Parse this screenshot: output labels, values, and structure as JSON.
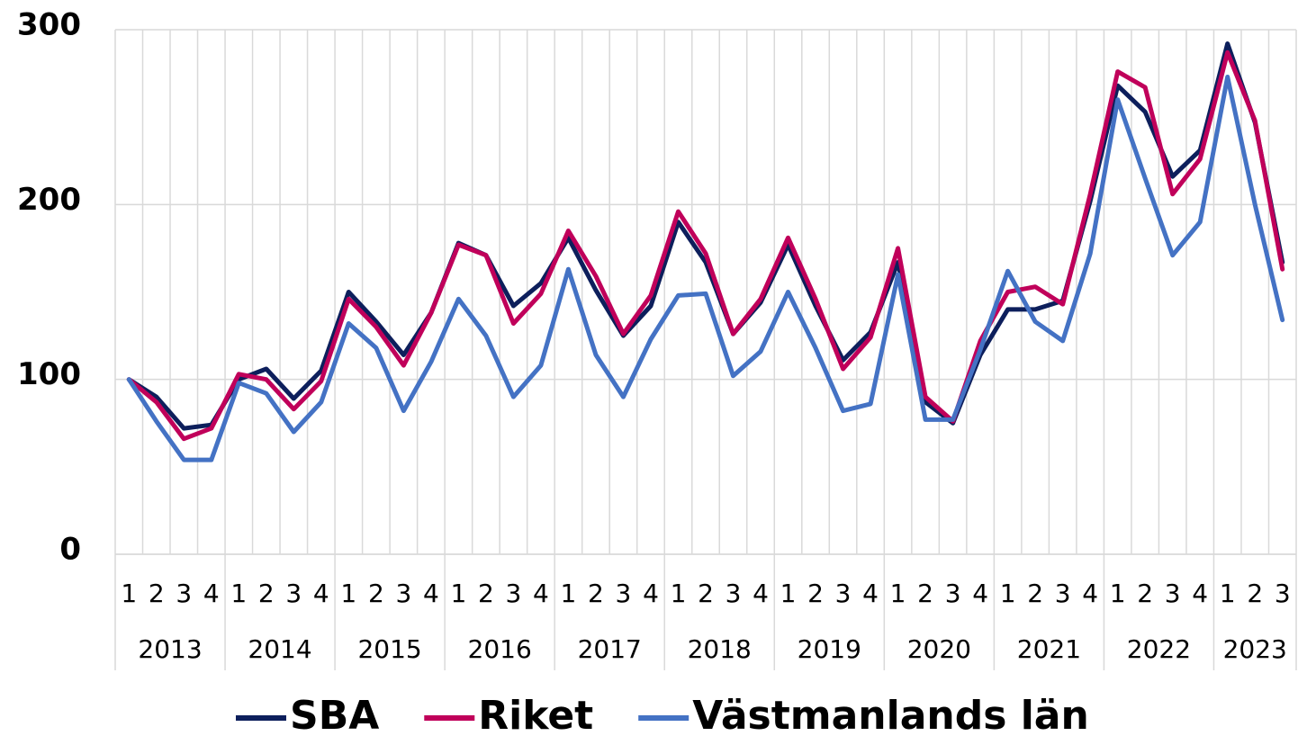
{
  "chart_data": {
    "type": "line",
    "categories": [
      "1",
      "2",
      "3",
      "4",
      "1",
      "2",
      "3",
      "4",
      "1",
      "2",
      "3",
      "4",
      "1",
      "2",
      "3",
      "4",
      "1",
      "2",
      "3",
      "4",
      "1",
      "2",
      "3",
      "4",
      "1",
      "2",
      "3",
      "4",
      "1",
      "2",
      "3",
      "4",
      "1",
      "2",
      "3",
      "4",
      "1",
      "2",
      "3",
      "4",
      "1",
      "2",
      "3"
    ],
    "category_groups": [
      {
        "label": "2013",
        "count": 4
      },
      {
        "label": "2014",
        "count": 4
      },
      {
        "label": "2015",
        "count": 4
      },
      {
        "label": "2016",
        "count": 4
      },
      {
        "label": "2017",
        "count": 4
      },
      {
        "label": "2018",
        "count": 4
      },
      {
        "label": "2019",
        "count": 4
      },
      {
        "label": "2020",
        "count": 4
      },
      {
        "label": "2021",
        "count": 4
      },
      {
        "label": "2022",
        "count": 4
      },
      {
        "label": "2023",
        "count": 3
      }
    ],
    "series": [
      {
        "name": "SBA",
        "color": "#0d1f5c",
        "values": [
          100,
          90,
          72,
          74,
          100,
          106,
          89,
          105,
          150,
          133,
          114,
          138,
          178,
          171,
          142,
          155,
          181,
          151,
          125,
          142,
          190,
          167,
          126,
          144,
          177,
          142,
          111,
          127,
          167,
          87,
          75,
          114,
          140,
          140,
          145,
          202,
          268,
          253,
          216,
          231,
          292,
          247,
          167
        ]
      },
      {
        "name": "Riket",
        "color": "#c0005a",
        "values": [
          100,
          87,
          66,
          72,
          103,
          100,
          83,
          99,
          146,
          130,
          108,
          138,
          177,
          171,
          132,
          149,
          185,
          159,
          126,
          148,
          196,
          172,
          126,
          146,
          181,
          146,
          106,
          124,
          175,
          90,
          76,
          122,
          150,
          153,
          143,
          206,
          276,
          267,
          206,
          226,
          287,
          248,
          163
        ]
      },
      {
        "name": "Västmanlands län",
        "color": "#4472c4",
        "values": [
          100,
          76,
          54,
          54,
          98,
          92,
          70,
          87,
          132,
          118,
          82,
          110,
          146,
          125,
          90,
          108,
          163,
          114,
          90,
          123,
          148,
          149,
          102,
          116,
          150,
          118,
          82,
          86,
          160,
          77,
          77,
          117,
          162,
          133,
          122,
          172,
          260,
          215,
          171,
          190,
          273,
          200,
          134
        ]
      }
    ],
    "ylim": [
      0,
      300
    ],
    "yticks": [
      0,
      100,
      200,
      300
    ],
    "grid": true,
    "legend": "bottom"
  }
}
